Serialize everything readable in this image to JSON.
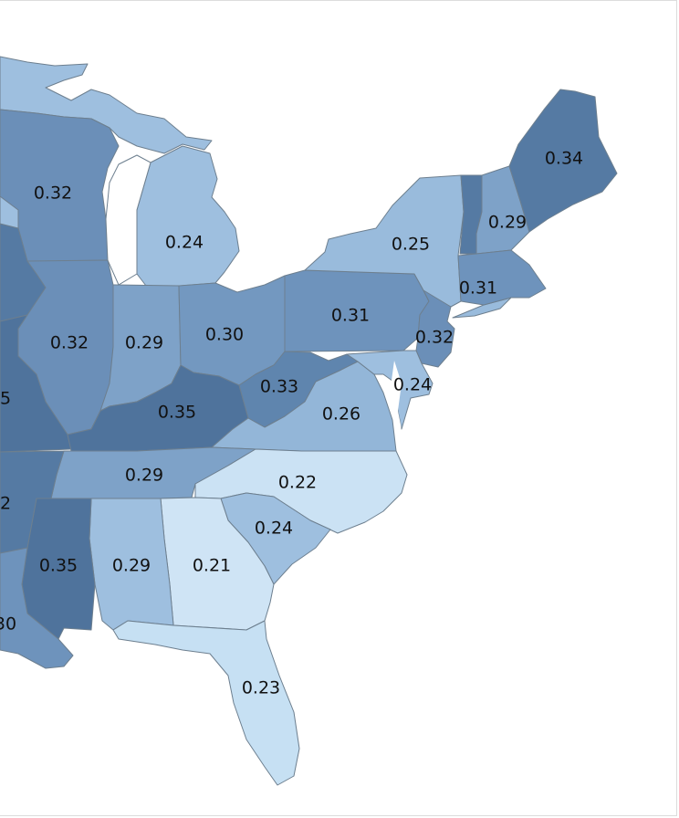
{
  "colors": {
    "c21": "#cfe4f5",
    "c22": "#cbe2f4",
    "c23": "#c6e0f3",
    "c24": "#9ebfdf",
    "c25": "#99bbdc",
    "c26": "#93b6d8",
    "c29": "#7ea2c8",
    "c30": "#7398c0",
    "c31": "#6e93bc",
    "c32": "#6b8fb8",
    "c33": "#5f85ae",
    "c34": "#557aa3",
    "c35": "#4f739c",
    "border": "#6d7f8f",
    "background": "#ffffff"
  },
  "states": {
    "maine": "0.34",
    "new_hampshire": "0.29",
    "massachusetts": "0.31",
    "new_york": "0.25",
    "pennsylvania": "0.31",
    "new_jersey": "0.32",
    "delaware_maryland": "0.24",
    "west_virginia": "0.33",
    "virginia": "0.26",
    "north_carolina": "0.22",
    "south_carolina": "0.24",
    "georgia": "0.21",
    "florida": "0.23",
    "alabama": "0.29",
    "mississippi": "0.35",
    "tennessee": "0.29",
    "kentucky": "0.35",
    "ohio": "0.30",
    "indiana": "0.29",
    "illinois": "0.32",
    "michigan": "0.24",
    "wisconsin": "0.32",
    "missouri_partial": "5",
    "arkansas_partial": "2",
    "louisiana_partial": "30"
  }
}
